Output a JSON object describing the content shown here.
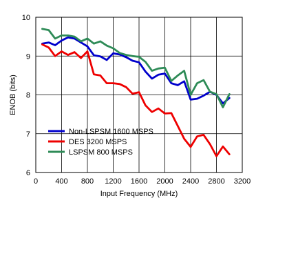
{
  "chart_data": {
    "type": "line",
    "xlabel": "Input Frequency (MHz)",
    "ylabel": "ENOB (bits)",
    "xlim": [
      0,
      3200
    ],
    "ylim": [
      6,
      10
    ],
    "xticks": [
      0,
      400,
      800,
      1200,
      1600,
      2000,
      2400,
      2800,
      3200
    ],
    "yticks": [
      6,
      7,
      8,
      9,
      10
    ],
    "grid": true,
    "legend_position": "bottom-left",
    "series": [
      {
        "name": "Non-LSPSM 1600 MSPS",
        "color": "#0000cc",
        "x": [
          100,
          200,
          300,
          400,
          500,
          600,
          700,
          800,
          900,
          1000,
          1100,
          1200,
          1300,
          1400,
          1500,
          1600,
          1700,
          1800,
          1900,
          2000,
          2100,
          2200,
          2300,
          2400,
          2500,
          2600,
          2700,
          2800,
          2900,
          3000
        ],
        "y": [
          9.32,
          9.35,
          9.28,
          9.4,
          9.48,
          9.45,
          9.35,
          9.25,
          9.02,
          8.99,
          8.9,
          9.07,
          9.04,
          8.97,
          8.88,
          8.84,
          8.6,
          8.42,
          8.52,
          8.55,
          8.3,
          8.25,
          8.35,
          7.88,
          7.9,
          7.98,
          8.08,
          8.0,
          7.78,
          7.92
        ]
      },
      {
        "name": "DES 3200 MSPS",
        "color": "#ee0000",
        "x": [
          100,
          200,
          300,
          400,
          500,
          600,
          700,
          800,
          900,
          1000,
          1100,
          1200,
          1300,
          1400,
          1500,
          1600,
          1700,
          1800,
          1900,
          2000,
          2100,
          2200,
          2300,
          2400,
          2500,
          2600,
          2700,
          2800,
          2900,
          3000
        ],
        "y": [
          9.3,
          9.22,
          9.0,
          9.12,
          9.03,
          9.1,
          8.95,
          9.12,
          8.53,
          8.5,
          8.3,
          8.3,
          8.28,
          8.2,
          8.03,
          8.07,
          7.73,
          7.56,
          7.65,
          7.52,
          7.53,
          7.2,
          6.87,
          6.66,
          6.93,
          6.97,
          6.73,
          6.42,
          6.67,
          6.47
        ]
      },
      {
        "name": "LSPSM 800 MSPS",
        "color": "#2e8b57",
        "x": [
          100,
          200,
          300,
          400,
          500,
          600,
          700,
          800,
          900,
          1000,
          1100,
          1200,
          1300,
          1400,
          1500,
          1600,
          1700,
          1800,
          1900,
          2000,
          2100,
          2200,
          2300,
          2400,
          2500,
          2600,
          2700,
          2800,
          2900,
          3000
        ],
        "y": [
          9.7,
          9.67,
          9.45,
          9.53,
          9.53,
          9.5,
          9.38,
          9.45,
          9.32,
          9.38,
          9.27,
          9.2,
          9.08,
          9.03,
          9.0,
          8.98,
          8.85,
          8.62,
          8.68,
          8.7,
          8.36,
          8.5,
          8.62,
          8.0,
          8.3,
          8.38,
          8.08,
          8.02,
          7.68,
          8.02
        ]
      }
    ]
  }
}
